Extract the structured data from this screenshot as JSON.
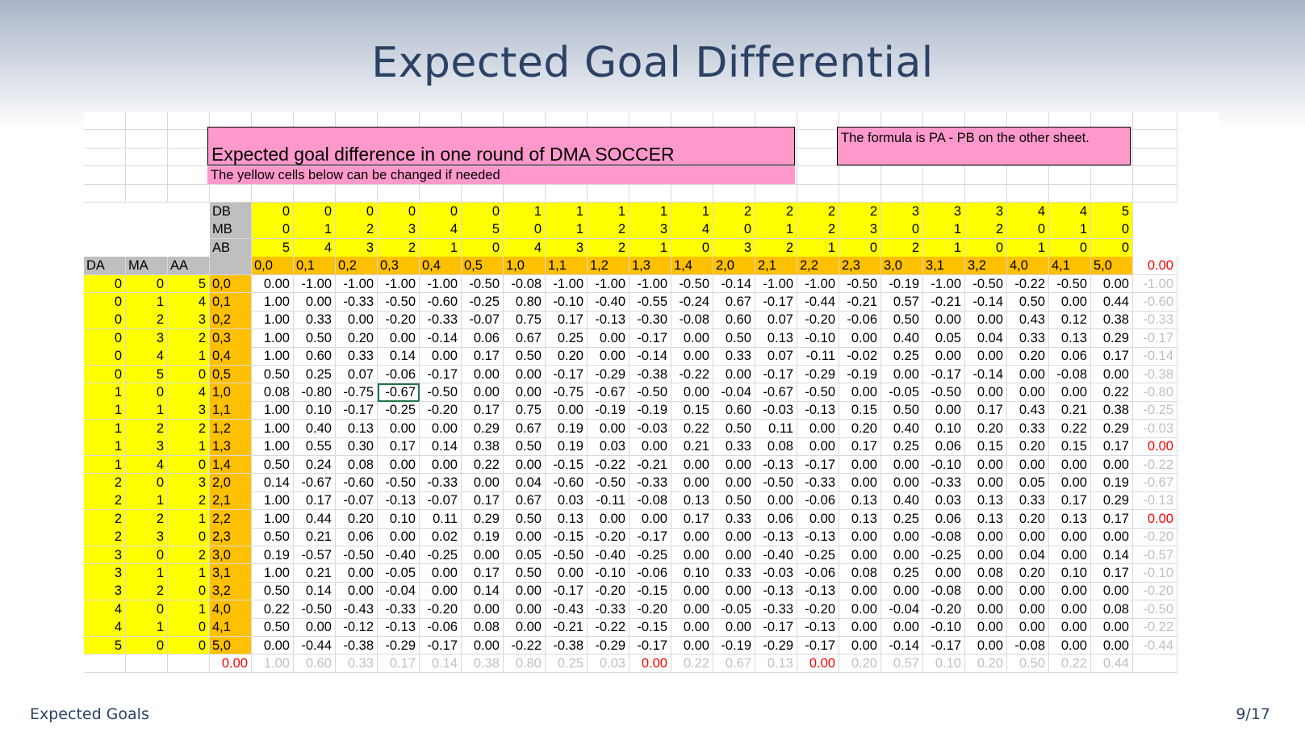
{
  "slide": {
    "title": "Expected Goal Differential",
    "footer_left": "Expected Goals",
    "footer_right": "9/17"
  },
  "sheet": {
    "banner_title": "Expected goal difference in one round of DMA SOCCER",
    "banner_note": "The yellow cells below can be changed if needed",
    "formula_note": "The formula is PA - PB on the other sheet.",
    "row_labels": [
      "DB",
      "MB",
      "AB"
    ],
    "col_headers_a": [
      "DA",
      "MA",
      "AA"
    ],
    "b_triples": [
      [
        0,
        0,
        5
      ],
      [
        0,
        1,
        4
      ],
      [
        0,
        2,
        3
      ],
      [
        0,
        3,
        2
      ],
      [
        0,
        4,
        1
      ],
      [
        0,
        5,
        0
      ],
      [
        1,
        0,
        4
      ],
      [
        1,
        1,
        3
      ],
      [
        1,
        2,
        2
      ],
      [
        1,
        3,
        1
      ],
      [
        1,
        4,
        0
      ],
      [
        2,
        0,
        3
      ],
      [
        2,
        1,
        2
      ],
      [
        2,
        2,
        1
      ],
      [
        2,
        3,
        0
      ],
      [
        3,
        0,
        2
      ],
      [
        3,
        1,
        1
      ],
      [
        3,
        2,
        0
      ],
      [
        4,
        0,
        1
      ],
      [
        4,
        1,
        0
      ],
      [
        5,
        0,
        0
      ]
    ],
    "col_labels": [
      "0,0",
      "0,1",
      "0,2",
      "0,3",
      "0,4",
      "0,5",
      "1,0",
      "1,1",
      "1,2",
      "1,3",
      "1,4",
      "2,0",
      "2,1",
      "2,2",
      "2,3",
      "3,0",
      "3,1",
      "3,2",
      "4,0",
      "4,1",
      "5,0"
    ],
    "corner_value": "0.00",
    "rows": [
      {
        "a": [
          0,
          0,
          5
        ],
        "label": "0,0",
        "values": [
          "0.00",
          "-1.00",
          "-1.00",
          "-1.00",
          "-1.00",
          "-0.50",
          "-0.08",
          "-1.00",
          "-1.00",
          "-1.00",
          "-0.50",
          "-0.14",
          "-1.00",
          "-1.00",
          "-0.50",
          "-0.19",
          "-1.00",
          "-0.50",
          "-0.22",
          "-0.50",
          "0.00"
        ],
        "min": "-1.00"
      },
      {
        "a": [
          0,
          1,
          4
        ],
        "label": "0,1",
        "values": [
          "1.00",
          "0.00",
          "-0.33",
          "-0.50",
          "-0.60",
          "-0.25",
          "0.80",
          "-0.10",
          "-0.40",
          "-0.55",
          "-0.24",
          "0.67",
          "-0.17",
          "-0.44",
          "-0.21",
          "0.57",
          "-0.21",
          "-0.14",
          "0.50",
          "0.00",
          "0.44"
        ],
        "min": "-0.60"
      },
      {
        "a": [
          0,
          2,
          3
        ],
        "label": "0,2",
        "values": [
          "1.00",
          "0.33",
          "0.00",
          "-0.20",
          "-0.33",
          "-0.07",
          "0.75",
          "0.17",
          "-0.13",
          "-0.30",
          "-0.08",
          "0.60",
          "0.07",
          "-0.20",
          "-0.06",
          "0.50",
          "0.00",
          "0.00",
          "0.43",
          "0.12",
          "0.38"
        ],
        "min": "-0.33"
      },
      {
        "a": [
          0,
          3,
          2
        ],
        "label": "0,3",
        "values": [
          "1.00",
          "0.50",
          "0.20",
          "0.00",
          "-0.14",
          "0.06",
          "0.67",
          "0.25",
          "0.00",
          "-0.17",
          "0.00",
          "0.50",
          "0.13",
          "-0.10",
          "0.00",
          "0.40",
          "0.05",
          "0.04",
          "0.33",
          "0.13",
          "0.29"
        ],
        "min": "-0.17"
      },
      {
        "a": [
          0,
          4,
          1
        ],
        "label": "0,4",
        "values": [
          "1.00",
          "0.60",
          "0.33",
          "0.14",
          "0.00",
          "0.17",
          "0.50",
          "0.20",
          "0.00",
          "-0.14",
          "0.00",
          "0.33",
          "0.07",
          "-0.11",
          "-0.02",
          "0.25",
          "0.00",
          "0.00",
          "0.20",
          "0.06",
          "0.17"
        ],
        "min": "-0.14"
      },
      {
        "a": [
          0,
          5,
          0
        ],
        "label": "0,5",
        "values": [
          "0.50",
          "0.25",
          "0.07",
          "-0.06",
          "-0.17",
          "0.00",
          "0.00",
          "-0.17",
          "-0.29",
          "-0.38",
          "-0.22",
          "0.00",
          "-0.17",
          "-0.29",
          "-0.19",
          "0.00",
          "-0.17",
          "-0.14",
          "0.00",
          "-0.08",
          "0.00"
        ],
        "min": "-0.38"
      },
      {
        "a": [
          1,
          0,
          4
        ],
        "label": "1,0",
        "values": [
          "0.08",
          "-0.80",
          "-0.75",
          "-0.67",
          "-0.50",
          "0.00",
          "0.00",
          "-0.75",
          "-0.67",
          "-0.50",
          "0.00",
          "-0.04",
          "-0.67",
          "-0.50",
          "0.00",
          "-0.05",
          "-0.50",
          "0.00",
          "0.00",
          "0.00",
          "0.22"
        ],
        "min": "-0.80"
      },
      {
        "a": [
          1,
          1,
          3
        ],
        "label": "1,1",
        "values": [
          "1.00",
          "0.10",
          "-0.17",
          "-0.25",
          "-0.20",
          "0.17",
          "0.75",
          "0.00",
          "-0.19",
          "-0.19",
          "0.15",
          "0.60",
          "-0.03",
          "-0.13",
          "0.15",
          "0.50",
          "0.00",
          "0.17",
          "0.43",
          "0.21",
          "0.38"
        ],
        "min": "-0.25"
      },
      {
        "a": [
          1,
          2,
          2
        ],
        "label": "1,2",
        "values": [
          "1.00",
          "0.40",
          "0.13",
          "0.00",
          "0.00",
          "0.29",
          "0.67",
          "0.19",
          "0.00",
          "-0.03",
          "0.22",
          "0.50",
          "0.11",
          "0.00",
          "0.20",
          "0.40",
          "0.10",
          "0.20",
          "0.33",
          "0.22",
          "0.29"
        ],
        "min": "-0.03"
      },
      {
        "a": [
          1,
          3,
          1
        ],
        "label": "1,3",
        "values": [
          "1.00",
          "0.55",
          "0.30",
          "0.17",
          "0.14",
          "0.38",
          "0.50",
          "0.19",
          "0.03",
          "0.00",
          "0.21",
          "0.33",
          "0.08",
          "0.00",
          "0.17",
          "0.25",
          "0.06",
          "0.15",
          "0.20",
          "0.15",
          "0.17"
        ],
        "min": "0.00"
      },
      {
        "a": [
          1,
          4,
          0
        ],
        "label": "1,4",
        "values": [
          "0.50",
          "0.24",
          "0.08",
          "0.00",
          "0.00",
          "0.22",
          "0.00",
          "-0.15",
          "-0.22",
          "-0.21",
          "0.00",
          "0.00",
          "-0.13",
          "-0.17",
          "0.00",
          "0.00",
          "-0.10",
          "0.00",
          "0.00",
          "0.00",
          "0.00"
        ],
        "min": "-0.22"
      },
      {
        "a": [
          2,
          0,
          3
        ],
        "label": "2,0",
        "values": [
          "0.14",
          "-0.67",
          "-0.60",
          "-0.50",
          "-0.33",
          "0.00",
          "0.04",
          "-0.60",
          "-0.50",
          "-0.33",
          "0.00",
          "0.00",
          "-0.50",
          "-0.33",
          "0.00",
          "0.00",
          "-0.33",
          "0.00",
          "0.05",
          "0.00",
          "0.19"
        ],
        "min": "-0.67"
      },
      {
        "a": [
          2,
          1,
          2
        ],
        "label": "2,1",
        "values": [
          "1.00",
          "0.17",
          "-0.07",
          "-0.13",
          "-0.07",
          "0.17",
          "0.67",
          "0.03",
          "-0.11",
          "-0.08",
          "0.13",
          "0.50",
          "0.00",
          "-0.06",
          "0.13",
          "0.40",
          "0.03",
          "0.13",
          "0.33",
          "0.17",
          "0.29"
        ],
        "min": "-0.13"
      },
      {
        "a": [
          2,
          2,
          1
        ],
        "label": "2,2",
        "values": [
          "1.00",
          "0.44",
          "0.20",
          "0.10",
          "0.11",
          "0.29",
          "0.50",
          "0.13",
          "0.00",
          "0.00",
          "0.17",
          "0.33",
          "0.06",
          "0.00",
          "0.13",
          "0.25",
          "0.06",
          "0.13",
          "0.20",
          "0.13",
          "0.17"
        ],
        "min": "0.00"
      },
      {
        "a": [
          2,
          3,
          0
        ],
        "label": "2,3",
        "values": [
          "0.50",
          "0.21",
          "0.06",
          "0.00",
          "0.02",
          "0.19",
          "0.00",
          "-0.15",
          "-0.20",
          "-0.17",
          "0.00",
          "0.00",
          "-0.13",
          "-0.13",
          "0.00",
          "0.00",
          "-0.08",
          "0.00",
          "0.00",
          "0.00",
          "0.00"
        ],
        "min": "-0.20"
      },
      {
        "a": [
          3,
          0,
          2
        ],
        "label": "3,0",
        "values": [
          "0.19",
          "-0.57",
          "-0.50",
          "-0.40",
          "-0.25",
          "0.00",
          "0.05",
          "-0.50",
          "-0.40",
          "-0.25",
          "0.00",
          "0.00",
          "-0.40",
          "-0.25",
          "0.00",
          "0.00",
          "-0.25",
          "0.00",
          "0.04",
          "0.00",
          "0.14"
        ],
        "min": "-0.57"
      },
      {
        "a": [
          3,
          1,
          1
        ],
        "label": "3,1",
        "values": [
          "1.00",
          "0.21",
          "0.00",
          "-0.05",
          "0.00",
          "0.17",
          "0.50",
          "0.00",
          "-0.10",
          "-0.06",
          "0.10",
          "0.33",
          "-0.03",
          "-0.06",
          "0.08",
          "0.25",
          "0.00",
          "0.08",
          "0.20",
          "0.10",
          "0.17"
        ],
        "min": "-0.10"
      },
      {
        "a": [
          3,
          2,
          0
        ],
        "label": "3,2",
        "values": [
          "0.50",
          "0.14",
          "0.00",
          "-0.04",
          "0.00",
          "0.14",
          "0.00",
          "-0.17",
          "-0.20",
          "-0.15",
          "0.00",
          "0.00",
          "-0.13",
          "-0.13",
          "0.00",
          "0.00",
          "-0.08",
          "0.00",
          "0.00",
          "0.00",
          "0.00"
        ],
        "min": "-0.20"
      },
      {
        "a": [
          4,
          0,
          1
        ],
        "label": "4,0",
        "values": [
          "0.22",
          "-0.50",
          "-0.43",
          "-0.33",
          "-0.20",
          "0.00",
          "0.00",
          "-0.43",
          "-0.33",
          "-0.20",
          "0.00",
          "-0.05",
          "-0.33",
          "-0.20",
          "0.00",
          "-0.04",
          "-0.20",
          "0.00",
          "0.00",
          "0.00",
          "0.08"
        ],
        "min": "-0.50"
      },
      {
        "a": [
          4,
          1,
          0
        ],
        "label": "4,1",
        "values": [
          "0.50",
          "0.00",
          "-0.12",
          "-0.13",
          "-0.06",
          "0.08",
          "0.00",
          "-0.21",
          "-0.22",
          "-0.15",
          "0.00",
          "0.00",
          "-0.17",
          "-0.13",
          "0.00",
          "0.00",
          "-0.10",
          "0.00",
          "0.00",
          "0.00",
          "0.00"
        ],
        "min": "-0.22"
      },
      {
        "a": [
          5,
          0,
          0
        ],
        "label": "5,0",
        "values": [
          "0.00",
          "-0.44",
          "-0.38",
          "-0.29",
          "-0.17",
          "0.00",
          "-0.22",
          "-0.38",
          "-0.29",
          "-0.17",
          "0.00",
          "-0.19",
          "-0.29",
          "-0.17",
          "0.00",
          "-0.14",
          "-0.17",
          "0.00",
          "-0.08",
          "0.00",
          "0.00"
        ],
        "min": "-0.44"
      }
    ],
    "bottom_left": "0.00",
    "bottom_values": [
      "1.00",
      "0.60",
      "0.33",
      "0.17",
      "0.14",
      "0.38",
      "0.80",
      "0.25",
      "0.03",
      "0.00",
      "0.22",
      "0.67",
      "0.13",
      "0.00",
      "0.20",
      "0.57",
      "0.10",
      "0.20",
      "0.50",
      "0.22",
      "0.44"
    ],
    "colors": {
      "yellow": "#ffff00",
      "orange": "#ffc000",
      "pink": "#ff99cc",
      "red": "#ff0000",
      "grey_text": "#c0c0c0",
      "title": "#2b4266"
    },
    "selected_cell": "row 1,0 / col 0,3"
  }
}
